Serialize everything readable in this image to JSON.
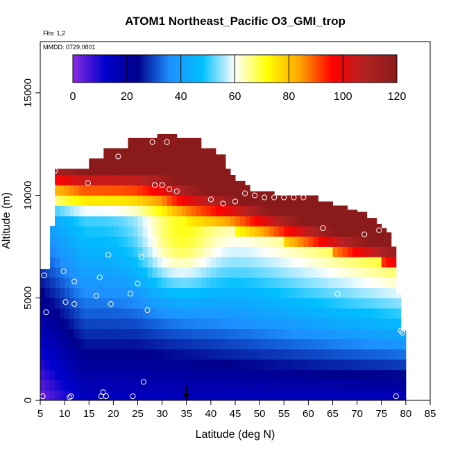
{
  "chart_data": {
    "type": "heatmap",
    "title": "ATOM1 Northeast_Pacific O3_GMI_trop",
    "annotations": [
      "Flts: 1,2",
      "MMDD: 0729,0801"
    ],
    "xlabel": "Latitude (deg N)",
    "ylabel": "Altitude (m)",
    "xlim": [
      5,
      85
    ],
    "ylim": [
      0,
      17500
    ],
    "xticks": [
      5,
      10,
      15,
      20,
      25,
      30,
      35,
      40,
      45,
      50,
      55,
      60,
      65,
      70,
      75,
      80,
      85
    ],
    "yticks": [
      0,
      5000,
      10000,
      15000
    ],
    "colorbar": {
      "min": 0,
      "max": 120,
      "ticks": [
        0,
        20,
        40,
        60,
        80,
        100,
        120
      ],
      "placement": "top",
      "colors": [
        "#8a2be2",
        "#0000cd",
        "#00008b",
        "#1e90ff",
        "#00bfff",
        "#ffffff",
        "#ffff00",
        "#ffa500",
        "#ff0000",
        "#b22222",
        "#8b1a1a"
      ]
    },
    "grid": false,
    "marker_arrow_x": 35,
    "profile": {
      "lat_bins": [
        5,
        6,
        7,
        8,
        9,
        10,
        11,
        12,
        13,
        14,
        15,
        16,
        17,
        18,
        19,
        20,
        21,
        22,
        23,
        24,
        25,
        26,
        27,
        28,
        29,
        30,
        31,
        32,
        33,
        34,
        35,
        36,
        37,
        38,
        39,
        40,
        41,
        42,
        43,
        44,
        45,
        46,
        47,
        48,
        49,
        50,
        51,
        52,
        53,
        54,
        55,
        56,
        57,
        58,
        59,
        60,
        61,
        62,
        63,
        64,
        65,
        66,
        67,
        68,
        69,
        70,
        71,
        72,
        73,
        74,
        75,
        76,
        77,
        78,
        79
      ],
      "top_altitude": [
        6400,
        6400,
        8500,
        11300,
        11300,
        11300,
        11300,
        11300,
        11300,
        11300,
        11800,
        11800,
        11800,
        12300,
        12300,
        12300,
        12300,
        12300,
        12800,
        12800,
        12800,
        12800,
        12800,
        12800,
        13000,
        13000,
        13000,
        13000,
        12800,
        12800,
        12800,
        12800,
        12800,
        12300,
        12300,
        12300,
        12000,
        12000,
        11300,
        11000,
        10700,
        10700,
        10500,
        10200,
        10200,
        10200,
        10200,
        10200,
        10000,
        10000,
        10000,
        10000,
        10000,
        10000,
        10000,
        10000,
        10000,
        9700,
        9700,
        9700,
        9500,
        9500,
        9500,
        9300,
        9300,
        9200,
        9200,
        8900,
        8900,
        8600,
        8400,
        8200,
        7500,
        5200,
        3400
      ],
      "stratos_top_lat_range": [
        30,
        79
      ]
    },
    "sample_points": [
      {
        "lat": 5.5,
        "alt": 200
      },
      {
        "lat": 5.8,
        "alt": 6100
      },
      {
        "lat": 6.2,
        "alt": 4300
      },
      {
        "lat": 7.5,
        "alt": 10500
      },
      {
        "lat": 8.0,
        "alt": 11200
      },
      {
        "lat": 9.8,
        "alt": 6300
      },
      {
        "lat": 10.2,
        "alt": 4800
      },
      {
        "lat": 11.0,
        "alt": 150
      },
      {
        "lat": 11.3,
        "alt": 200
      },
      {
        "lat": 12.0,
        "alt": 5800
      },
      {
        "lat": 12.0,
        "alt": 4700
      },
      {
        "lat": 14.8,
        "alt": 10600
      },
      {
        "lat": 16.5,
        "alt": 5100
      },
      {
        "lat": 17.2,
        "alt": 6000
      },
      {
        "lat": 17.5,
        "alt": 200
      },
      {
        "lat": 17.9,
        "alt": 400
      },
      {
        "lat": 18.5,
        "alt": 200
      },
      {
        "lat": 19.0,
        "alt": 7100
      },
      {
        "lat": 19.5,
        "alt": 4700
      },
      {
        "lat": 21.0,
        "alt": 11900
      },
      {
        "lat": 23.5,
        "alt": 5200
      },
      {
        "lat": 24.0,
        "alt": 200
      },
      {
        "lat": 25.0,
        "alt": 5700
      },
      {
        "lat": 25.8,
        "alt": 7000
      },
      {
        "lat": 26.2,
        "alt": 900
      },
      {
        "lat": 27.0,
        "alt": 4400
      },
      {
        "lat": 28.0,
        "alt": 12600
      },
      {
        "lat": 28.5,
        "alt": 10500
      },
      {
        "lat": 30.0,
        "alt": 10500
      },
      {
        "lat": 31.0,
        "alt": 12600
      },
      {
        "lat": 31.5,
        "alt": 10300
      },
      {
        "lat": 33.0,
        "alt": 10200
      },
      {
        "lat": 34.0,
        "alt": 6600
      },
      {
        "lat": 40.0,
        "alt": 9800
      },
      {
        "lat": 42.5,
        "alt": 9600
      },
      {
        "lat": 45.0,
        "alt": 9700
      },
      {
        "lat": 47.0,
        "alt": 10100
      },
      {
        "lat": 49.0,
        "alt": 10000
      },
      {
        "lat": 51.0,
        "alt": 9900
      },
      {
        "lat": 53.0,
        "alt": 9900
      },
      {
        "lat": 55.0,
        "alt": 9900
      },
      {
        "lat": 57.0,
        "alt": 9900
      },
      {
        "lat": 59.0,
        "alt": 9900
      },
      {
        "lat": 63.0,
        "alt": 8400
      },
      {
        "lat": 64.5,
        "alt": 6100
      },
      {
        "lat": 66.0,
        "alt": 5200
      },
      {
        "lat": 70.0,
        "alt": 5700
      },
      {
        "lat": 71.5,
        "alt": 8100
      },
      {
        "lat": 74.5,
        "alt": 8300
      },
      {
        "lat": 78.0,
        "alt": 200
      },
      {
        "lat": 79.0,
        "alt": 3400
      },
      {
        "lat": 79.3,
        "alt": 3300
      }
    ]
  }
}
